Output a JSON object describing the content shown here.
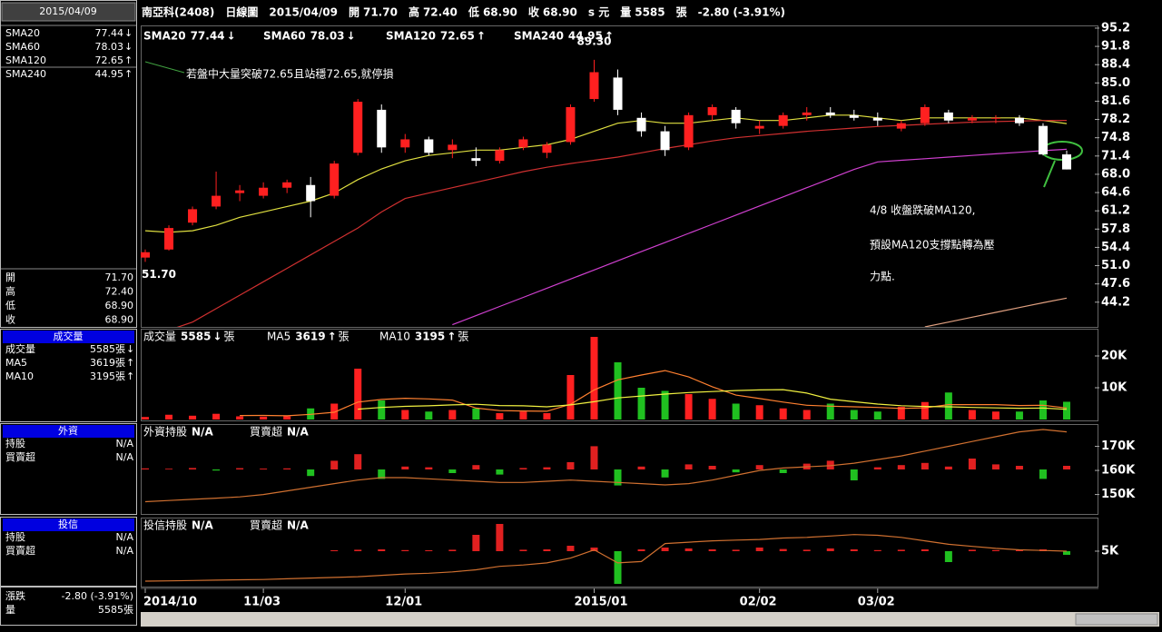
{
  "header": {
    "items": [
      {
        "text": "南亞科(2408)",
        "color": "#ffffff"
      },
      {
        "text": "日線圖",
        "color": "#ffffff"
      },
      {
        "text": "2015/04/09",
        "color": "#ffffff"
      },
      {
        "text": "開",
        "color": "#ffffff"
      },
      {
        "text": "71.70",
        "color": "#ffffff"
      },
      {
        "text": "高",
        "color": "#ffffff"
      },
      {
        "text": "72.40",
        "color": "#ff3030"
      },
      {
        "text": "低",
        "color": "#ffffff"
      },
      {
        "text": "68.90",
        "color": "#30ff30"
      },
      {
        "text": "收",
        "color": "#ffffff"
      },
      {
        "text": "68.90",
        "color": "#30ff30"
      },
      {
        "text": "s 元",
        "color": "#ffffff"
      },
      {
        "text": "量",
        "color": "#ffffff"
      },
      {
        "text": "5585",
        "color": "#ffffff"
      },
      {
        "text": "張",
        "color": "#ffffff"
      },
      {
        "text": "-2.80 (-3.91%)",
        "color": "#ffffff"
      }
    ]
  },
  "sidebar": {
    "date": "2015/04/09",
    "ma_rows": [
      {
        "label": "SMA20",
        "value": "77.44",
        "trend": "↓",
        "color": "#ffffff"
      },
      {
        "label": "SMA60",
        "value": "78.03",
        "trend": "↓",
        "color": "#ff3030"
      },
      {
        "label": "SMA120",
        "value": "72.65",
        "trend": "↑",
        "color": "#ff40ff"
      },
      {
        "label": "SMA240",
        "value": "44.95",
        "trend": "↑",
        "color": "#ffffff"
      }
    ],
    "price_rows": [
      {
        "label": "開",
        "value": "71.70"
      },
      {
        "label": "高",
        "value": "72.40"
      },
      {
        "label": "低",
        "value": "68.90"
      },
      {
        "label": "收",
        "value": "68.90"
      }
    ],
    "sections": [
      {
        "title": "成交量",
        "rows": [
          {
            "label": "成交量",
            "value": "5585張",
            "trend": "↓",
            "color": "#ffffff"
          },
          {
            "label": "MA5",
            "value": "3619張",
            "trend": "↑",
            "color": "#ff8030"
          },
          {
            "label": "MA10",
            "value": "3195張",
            "trend": "↑",
            "color": "#ffffff"
          }
        ]
      },
      {
        "title": "外資",
        "rows": [
          {
            "label": "持股",
            "value": "N/A",
            "color": "#ff8030"
          },
          {
            "label": "買賣超",
            "value": "N/A",
            "color": "#ffffff"
          }
        ]
      },
      {
        "title": "投信",
        "rows": [
          {
            "label": "持股",
            "value": "N/A",
            "color": "#ff8030"
          },
          {
            "label": "買賣超",
            "value": "N/A",
            "color": "#ffffff"
          }
        ]
      }
    ],
    "footer": [
      {
        "label": "漲跌",
        "value": "-2.80 (-3.91%)"
      },
      {
        "label": "量",
        "value": "5585張"
      }
    ]
  },
  "chart_data": [
    {
      "type": "candlestick",
      "categories": [
        "2014/10",
        null,
        null,
        null,
        null,
        "11/03",
        null,
        null,
        null,
        null,
        null,
        "12/01",
        null,
        null,
        null,
        null,
        null,
        null,
        null,
        "2015/01",
        null,
        null,
        null,
        null,
        null,
        null,
        "02/02",
        null,
        null,
        null,
        null,
        "03/02",
        null,
        null,
        null,
        null,
        null,
        null,
        null,
        null
      ],
      "open": [
        52.5,
        54,
        59,
        62,
        64.5,
        64,
        65.5,
        66,
        64,
        72,
        80,
        73,
        74.5,
        72.5,
        71,
        70.5,
        73,
        72,
        74,
        82,
        86,
        78.5,
        76,
        73,
        79,
        80,
        76.5,
        77,
        79,
        79.5,
        79,
        78.5,
        76.5,
        77.5,
        79.5,
        78,
        78.5,
        78.5,
        77,
        71.7
      ],
      "high": [
        54,
        58.5,
        62,
        68.5,
        66,
        66.5,
        67,
        67.5,
        70.5,
        82,
        81,
        75.5,
        75,
        74.5,
        73,
        73,
        75,
        74,
        81,
        89.3,
        87.5,
        79.5,
        77,
        79.5,
        81,
        80.5,
        78,
        79.5,
        80.5,
        80.5,
        80,
        79.5,
        78,
        81,
        80,
        79,
        79,
        79,
        77.5,
        72.4
      ],
      "low": [
        51.7,
        53.8,
        58.5,
        61.5,
        63,
        63.5,
        64.5,
        60,
        63.5,
        71.5,
        72,
        72,
        71.5,
        71,
        69.5,
        70,
        72.5,
        71,
        73.5,
        81.5,
        79,
        75,
        71.4,
        72.5,
        78,
        76.5,
        75.5,
        76.5,
        78,
        78.5,
        78,
        77,
        76,
        77,
        77.5,
        77.5,
        77.5,
        77,
        71.5,
        68.9
      ],
      "close": [
        53.5,
        58,
        61.5,
        64,
        65,
        65.5,
        66.5,
        63,
        70,
        81.5,
        73,
        74.5,
        72,
        73.5,
        70.5,
        72.5,
        74.5,
        73.5,
        80.5,
        87,
        80,
        76,
        72.5,
        79,
        80.5,
        77.5,
        77,
        79,
        79.5,
        79,
        78.5,
        78,
        77.5,
        80.5,
        78,
        78.5,
        78.5,
        77.5,
        71.7,
        68.9
      ],
      "up_color": "#ff2020",
      "down_color": "#ffffff",
      "ylim": [
        39.6,
        95.7
      ],
      "yticks": [
        95.2,
        91.8,
        88.4,
        {
          "value": 85,
          "label": "85.0"
        },
        81.6,
        78.2,
        74.8,
        71.4,
        {
          "value": 68,
          "label": "68.0"
        },
        64.6,
        61.2,
        57.8,
        54.4,
        {
          "value": 51,
          "label": "51.0"
        },
        47.6,
        44.2
      ],
      "grid": false,
      "high_label": "89.30",
      "low_label": "51.70",
      "series": [
        {
          "name": "SMA20",
          "color": "#e0e040",
          "last_label": "77.44",
          "trend": "↓",
          "values": [
            57.5,
            57.2,
            57.5,
            58.5,
            60,
            61,
            62,
            63,
            64.5,
            67,
            69,
            70.5,
            71.5,
            72,
            72.5,
            72.5,
            73,
            73.5,
            74.5,
            76,
            77.5,
            78,
            77.5,
            77.5,
            78,
            78.5,
            78,
            78,
            78.5,
            79,
            79,
            78.5,
            78,
            78.5,
            78.5,
            78.5,
            78.5,
            78.5,
            78,
            77.44
          ]
        },
        {
          "name": "SMA60",
          "color": "#d03030",
          "last_label": "78.03",
          "trend": "↓",
          "values": [
            38,
            39,
            40.5,
            43,
            45.5,
            48,
            50.5,
            53,
            55.5,
            58,
            61,
            63.5,
            64.5,
            65.5,
            66.5,
            67.5,
            68.5,
            69.3,
            70,
            70.6,
            71.2,
            72,
            72.8,
            73.5,
            74.2,
            74.8,
            75.2,
            75.6,
            76,
            76.3,
            76.6,
            76.9,
            77.1,
            77.3,
            77.5,
            77.7,
            77.8,
            77.9,
            78,
            78.03
          ]
        },
        {
          "name": "SMA120",
          "color": "#d040d0",
          "last_label": "72.65",
          "trend": "↑",
          "values": [
            null,
            null,
            null,
            null,
            null,
            null,
            null,
            null,
            null,
            null,
            null,
            null,
            null,
            40,
            41.7,
            43.4,
            45.1,
            46.8,
            48.5,
            50.2,
            51.9,
            53.6,
            55.3,
            57,
            58.7,
            60.4,
            62.1,
            63.8,
            65.5,
            67.2,
            68.9,
            70.3,
            70.6,
            70.9,
            71.2,
            71.5,
            71.8,
            72.1,
            72.4,
            72.65
          ]
        },
        {
          "name": "SMA240",
          "color": "#e0a080",
          "last_label": "44.95",
          "trend": "↑",
          "values": [
            null,
            null,
            null,
            null,
            null,
            null,
            null,
            null,
            null,
            null,
            null,
            null,
            null,
            null,
            null,
            null,
            null,
            null,
            null,
            null,
            null,
            null,
            null,
            null,
            null,
            null,
            null,
            null,
            null,
            null,
            null,
            null,
            null,
            39.6,
            40.5,
            41.4,
            42.3,
            43.2,
            44.1,
            44.95
          ]
        }
      ],
      "annotations": [
        {
          "text": "若盤中大量突破72.65且站穩72.65,就停損"
        },
        {
          "text": "4/8 收盤跌破MA120,"
        },
        {
          "text": "預設MA120支撐點轉為壓"
        },
        {
          "text": "力點."
        }
      ],
      "annotation_color": "#40c040"
    },
    {
      "type": "bar",
      "ylim": [
        0,
        28000
      ],
      "yticks": [
        {
          "value": 10000,
          "label": "10K"
        },
        {
          "value": 20000,
          "label": "20K"
        }
      ],
      "up_color": "#ff2020",
      "down_color": "#20c020",
      "series": [
        {
          "name": "成交量",
          "kind": "bar",
          "color": "#ffffff",
          "last_label": "5585",
          "trend": "↓",
          "unit": "張",
          "values": [
            800,
            1500,
            1200,
            1800,
            1000,
            900,
            1000,
            3500,
            5000,
            16000,
            6000,
            3000,
            2500,
            3000,
            3500,
            2000,
            2500,
            2000,
            14000,
            26000,
            18000,
            10000,
            9000,
            8000,
            6500,
            5000,
            4500,
            3500,
            3000,
            5000,
            3000,
            2500,
            4000,
            5500,
            8500,
            3000,
            2500,
            2500,
            6000,
            5585
          ]
        },
        {
          "name": "MA5",
          "kind": "line",
          "color": "#ff8030",
          "last_label": "3619",
          "trend": "↑",
          "unit": "張",
          "values": [
            null,
            null,
            null,
            null,
            1260,
            1280,
            1180,
            1640,
            2280,
            5480,
            6300,
            6700,
            6500,
            6100,
            3600,
            2800,
            2700,
            2600,
            4800,
            9300,
            12500,
            14000,
            15400,
            13400,
            10300,
            7700,
            6600,
            5500,
            4500,
            4200,
            4000,
            3800,
            3500,
            3700,
            4700,
            4700,
            4700,
            4400,
            4500,
            3619
          ]
        },
        {
          "name": "MA10",
          "kind": "line",
          "color": "#f0f040",
          "last_label": "3195",
          "trend": "↑",
          "unit": "張",
          "values": [
            null,
            null,
            null,
            null,
            null,
            null,
            null,
            null,
            null,
            3270,
            3800,
            4150,
            4300,
            4600,
            4800,
            4400,
            4300,
            4000,
            4600,
            5600,
            6800,
            7400,
            8000,
            8500,
            8800,
            9100,
            9300,
            9400,
            8300,
            6400,
            5600,
            4850,
            4350,
            4100,
            4000,
            3800,
            3650,
            3550,
            3600,
            3195
          ]
        }
      ]
    },
    {
      "type": "bar",
      "ylim": [
        142300,
        178500
      ],
      "yticks": [
        {
          "value": 150000,
          "label": "150K"
        },
        {
          "value": 160000,
          "label": "160K"
        },
        {
          "value": 170000,
          "label": "170K"
        }
      ],
      "y2lim": [
        -6000,
        6000
      ],
      "up_color": "#e02020",
      "down_color": "#20c020",
      "series": [
        {
          "name": "外資持股",
          "kind": "line",
          "color": "#d07030",
          "last_label": "N/A",
          "values": [
            147000,
            147500,
            148000,
            148500,
            149000,
            150000,
            151500,
            153000,
            154500,
            156000,
            157000,
            157000,
            156500,
            156000,
            155500,
            155000,
            155000,
            155500,
            156000,
            155500,
            155000,
            154500,
            154000,
            154500,
            156000,
            158000,
            160000,
            161000,
            161500,
            162000,
            163000,
            164500,
            166000,
            168000,
            170000,
            172000,
            174000,
            176000,
            177000,
            176000
          ]
        },
        {
          "name": "買賣超",
          "kind": "bar",
          "axis": "y2",
          "color": "#ffffff",
          "last_label": "N/A",
          "values": [
            150,
            100,
            200,
            -150,
            180,
            120,
            150,
            -900,
            1200,
            2100,
            -1300,
            400,
            300,
            -500,
            600,
            -700,
            200,
            300,
            1000,
            3200,
            -2200,
            400,
            -1100,
            700,
            500,
            -400,
            600,
            -500,
            800,
            1200,
            -1500,
            300,
            600,
            900,
            400,
            1500,
            700,
            500,
            -1300,
            500
          ]
        }
      ]
    },
    {
      "type": "bar",
      "ylim": [
        0,
        9600
      ],
      "yticks": [
        {
          "value": 5000,
          "label": "5K"
        }
      ],
      "y2lim": [
        -1900,
        1750
      ],
      "up_color": "#e02020",
      "down_color": "#20c020",
      "series": [
        {
          "name": "投信持股",
          "kind": "line",
          "color": "#d07030",
          "last_label": "N/A",
          "values": [
            660,
            700,
            750,
            800,
            850,
            900,
            1000,
            1100,
            1200,
            1300,
            1500,
            1700,
            1800,
            2000,
            2300,
            2800,
            3000,
            3300,
            4000,
            5200,
            3300,
            3500,
            6100,
            6300,
            6500,
            6600,
            6700,
            6900,
            7000,
            7200,
            7400,
            7300,
            7000,
            6500,
            6000,
            5700,
            5400,
            5200,
            5100,
            5000
          ]
        },
        {
          "name": "買賣超",
          "kind": "bar",
          "axis": "y2",
          "color": "#ffffff",
          "last_label": "N/A",
          "values": [
            0,
            0,
            0,
            0,
            0,
            0,
            0,
            0,
            50,
            80,
            100,
            60,
            50,
            80,
            900,
            1500,
            80,
            100,
            300,
            200,
            -1800,
            100,
            200,
            150,
            100,
            80,
            200,
            120,
            80,
            150,
            100,
            60,
            80,
            100,
            -600,
            80,
            60,
            50,
            100,
            -200
          ]
        }
      ]
    }
  ]
}
